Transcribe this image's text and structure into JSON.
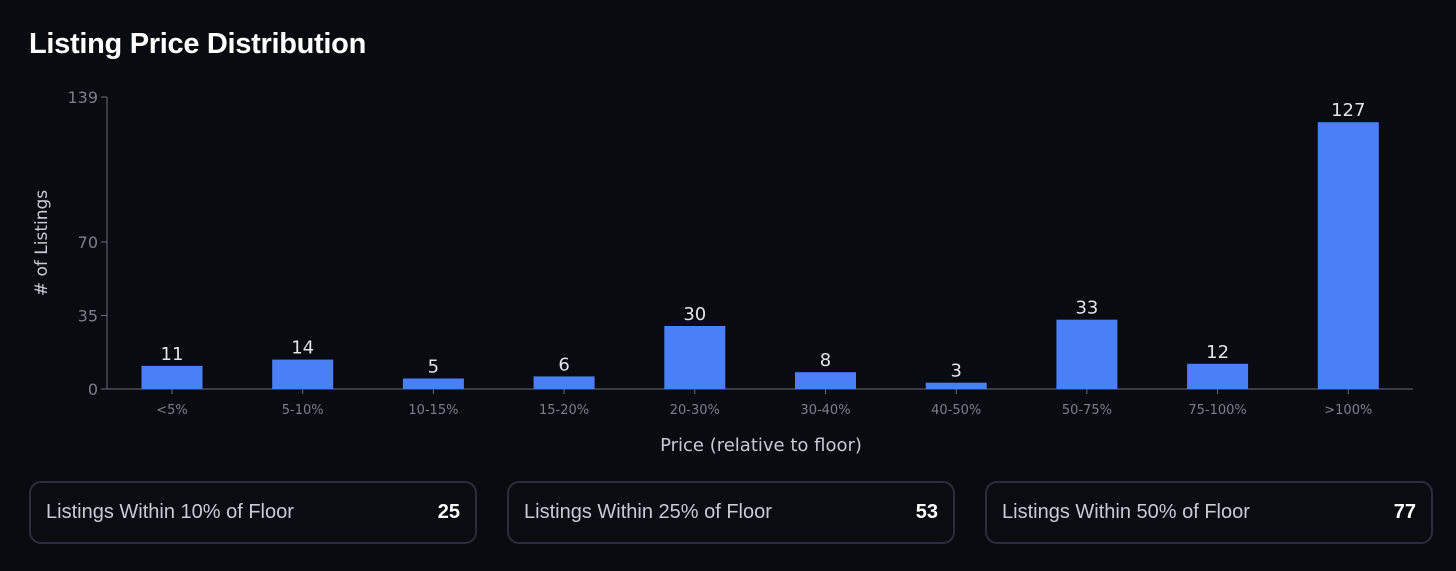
{
  "title": "Listing Price Distribution",
  "chart_data": {
    "type": "bar",
    "categories": [
      "<5%",
      "5-10%",
      "10-15%",
      "15-20%",
      "20-30%",
      "30-40%",
      "40-50%",
      "50-75%",
      "75-100%",
      ">100%"
    ],
    "values": [
      11,
      14,
      5,
      6,
      30,
      8,
      3,
      33,
      12,
      127
    ],
    "xlabel": "Price (relative to floor)",
    "ylabel": "# of Listings",
    "ylim": [
      0,
      139
    ],
    "yticks": [
      0,
      35,
      70,
      139
    ],
    "grid": false,
    "bar_color": "#4a7ff7",
    "data_labels": true
  },
  "summary_cards": [
    {
      "label": "Listings Within 10% of Floor",
      "value": "25"
    },
    {
      "label": "Listings Within 25% of Floor",
      "value": "53"
    },
    {
      "label": "Listings Within 50% of Floor",
      "value": "77"
    }
  ]
}
